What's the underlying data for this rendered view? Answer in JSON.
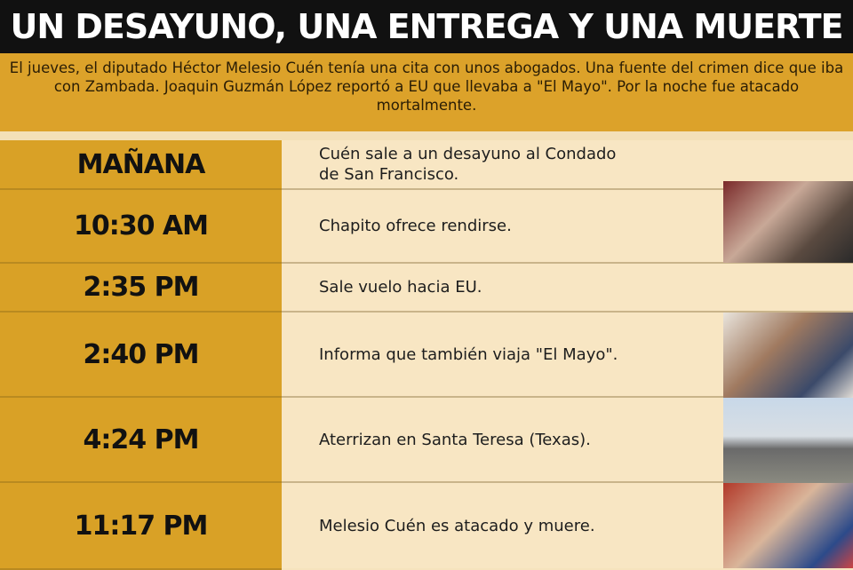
{
  "title": "UN DESAYUNO, UNA ENTREGA Y UNA MUERTE",
  "intro": "El jueves, el diputado Héctor Melesio Cuén tenía una cita con unos abogados. Una fuente del crimen dice que iba con Zambada. Joaquin Guzmán López reportó a EU que llevaba a \"El Mayo\". Por la noche fue atacado mortalmente.",
  "colors": {
    "header_bg": "#111111",
    "accent": "#d9a126",
    "row_bg": "#f8e6c3"
  },
  "timeline": [
    {
      "time": "MAÑANA",
      "event": "Cuén sale a un desayuno al Condado de San Francisco."
    },
    {
      "time": "10:30 AM",
      "event": "Chapito ofrece rendirse."
    },
    {
      "time": "2:35 PM",
      "event": "Sale vuelo hacia EU."
    },
    {
      "time": "2:40 PM",
      "event": "Informa que también viaja \"El Mayo\"."
    },
    {
      "time": "4:24 PM",
      "event": "Aterrizan en Santa Teresa (Texas)."
    },
    {
      "time": "11:17 PM",
      "event": "Melesio Cuén es atacado y muere."
    }
  ]
}
